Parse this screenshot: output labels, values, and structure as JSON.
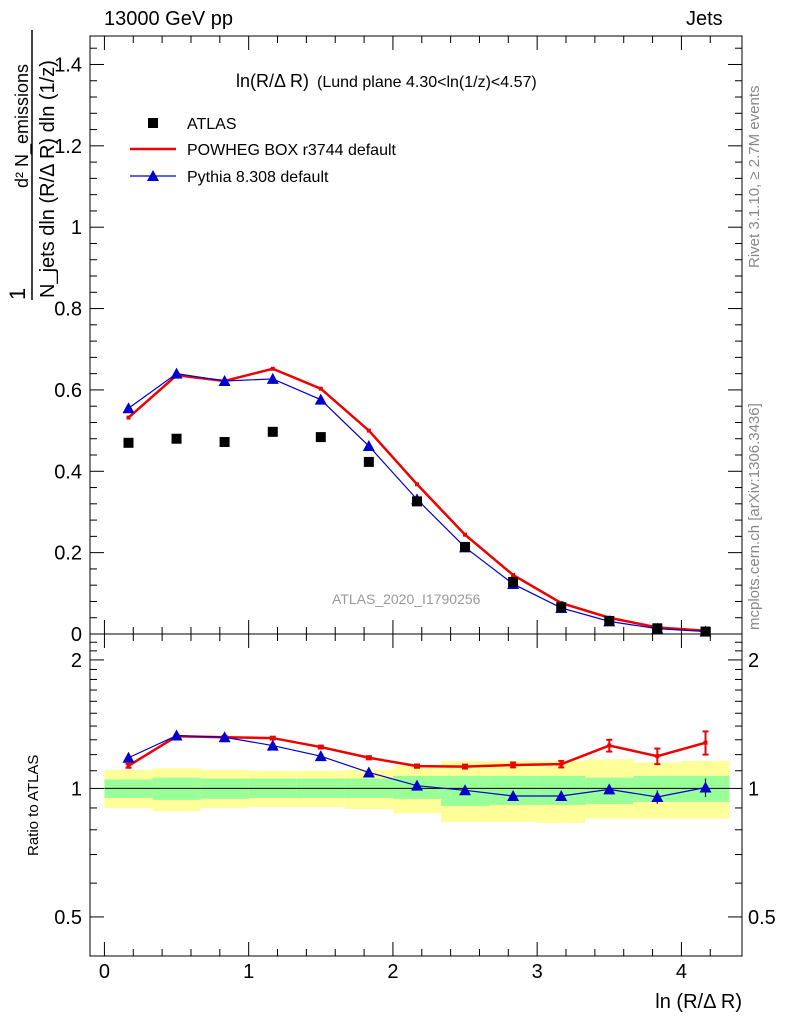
{
  "header": {
    "left": "13000 GeV pp",
    "right": "Jets"
  },
  "side_labels": {
    "rivet": "Rivet 3.1.10, ≥ 2.7M events",
    "mcplots": "mcplots.cern.ch [arXiv:1306.3436]"
  },
  "colors": {
    "atlas": "#000000",
    "powheg": "#ee0000",
    "pythia": "#0000cc",
    "band_inner": "#99ff99",
    "band_outer": "#ffff99"
  },
  "chart_data": [
    {
      "type": "scatter",
      "title_main": "ln(R/Δ R)",
      "title_rest": "(Lund plane 4.30<ln(1/z)<4.57)",
      "ylabel_frac_num": "1",
      "ylabel_frac_den": "N_jets dln (R/Δ R) dln (1/z)",
      "ylabel_top": "d² N_emissions",
      "ylim": [
        0,
        1.47
      ],
      "yticks": [
        0,
        0.2,
        0.4,
        0.6,
        0.8,
        1,
        1.2,
        1.4
      ],
      "ytick_labels": [
        "0",
        "0.2",
        "0.4",
        "0.6",
        "0.8",
        "1",
        "1.2",
        "1.4"
      ],
      "xlim": [
        -0.1,
        4.42
      ],
      "watermark": "ATLAS_2020_I1790256",
      "legend": [
        "ATLAS",
        "POWHEG BOX r3744 default",
        "Pythia 8.308 default"
      ],
      "x": [
        0.167,
        0.5,
        0.833,
        1.167,
        1.5,
        1.833,
        2.167,
        2.5,
        2.833,
        3.167,
        3.5,
        3.833,
        4.167
      ],
      "series": [
        {
          "name": "ATLAS",
          "values": [
            0.47,
            0.48,
            0.472,
            0.497,
            0.484,
            0.423,
            0.326,
            0.214,
            0.128,
            0.066,
            0.032,
            0.014,
            0.006
          ]
        },
        {
          "name": "POWHEG BOX r3744 default",
          "values": [
            0.532,
            0.636,
            0.622,
            0.652,
            0.603,
            0.5,
            0.368,
            0.244,
            0.145,
            0.076,
            0.04,
            0.016,
            0.008
          ]
        },
        {
          "name": "Pythia 8.308 default",
          "values": [
            0.555,
            0.64,
            0.622,
            0.627,
            0.576,
            0.462,
            0.331,
            0.213,
            0.123,
            0.064,
            0.031,
            0.013,
            0.006
          ]
        }
      ]
    },
    {
      "type": "line",
      "ylabel": "Ratio to ATLAS",
      "ylim": [
        0.405,
        2.3
      ],
      "log_y": true,
      "yticks": [
        0.5,
        1,
        2
      ],
      "ytick_labels": [
        "0.5",
        "1",
        "2"
      ],
      "xlim": [
        -0.1,
        4.42
      ],
      "xticks": [
        0,
        1,
        2,
        3,
        4
      ],
      "xtick_labels": [
        "0",
        "1",
        "2",
        "3",
        "4"
      ],
      "xlabel": "ln (R/Δ R)",
      "bins": [
        0,
        0.333,
        0.667,
        1,
        1.333,
        1.667,
        2,
        2.333,
        2.667,
        3,
        3.333,
        3.667,
        4,
        4.333
      ],
      "band_inner_lo": [
        0.95,
        0.94,
        0.945,
        0.95,
        0.95,
        0.95,
        0.945,
        0.91,
        0.915,
        0.915,
        0.92,
        0.93,
        0.93
      ],
      "band_inner_hi": [
        1.05,
        1.06,
        1.055,
        1.055,
        1.055,
        1.055,
        1.07,
        1.07,
        1.07,
        1.07,
        1.06,
        1.07,
        1.07
      ],
      "band_outer_lo": [
        0.9,
        0.885,
        0.9,
        0.905,
        0.905,
        0.895,
        0.875,
        0.835,
        0.835,
        0.83,
        0.85,
        0.85,
        0.85
      ],
      "band_outer_hi": [
        1.105,
        1.115,
        1.105,
        1.1,
        1.1,
        1.105,
        1.13,
        1.16,
        1.16,
        1.16,
        1.17,
        1.15,
        1.16
      ],
      "x": [
        0.167,
        0.5,
        0.833,
        1.167,
        1.5,
        1.833,
        2.167,
        2.5,
        2.833,
        3.167,
        3.5,
        3.833,
        4.167
      ],
      "series": [
        {
          "name": "POWHEG BOX r3744 default",
          "values": [
            1.13,
            1.325,
            1.318,
            1.312,
            1.25,
            1.18,
            1.128,
            1.125,
            1.135,
            1.14,
            1.26,
            1.19,
            1.28
          ],
          "errors": [
            0.012,
            0.01,
            0.01,
            0.01,
            0.01,
            0.01,
            0.01,
            0.012,
            0.015,
            0.02,
            0.04,
            0.05,
            0.08
          ]
        },
        {
          "name": "Pythia 8.308 default",
          "values": [
            1.18,
            1.33,
            1.318,
            1.26,
            1.19,
            1.09,
            1.015,
            0.99,
            0.96,
            0.96,
            0.995,
            0.955,
            1.005
          ],
          "errors": [
            0.01,
            0.01,
            0.01,
            0.01,
            0.01,
            0.01,
            0.01,
            0.012,
            0.015,
            0.02,
            0.025,
            0.035,
            0.05
          ]
        }
      ]
    }
  ]
}
